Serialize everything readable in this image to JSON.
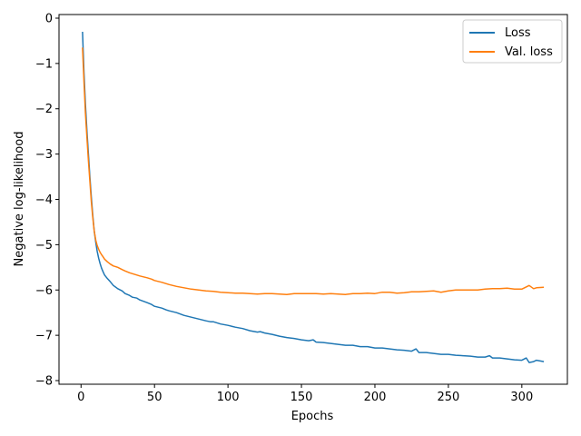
{
  "chart_data": {
    "type": "line",
    "title": "",
    "xlabel": "Epochs",
    "ylabel": "Negative log-likelihood",
    "xlim": [
      -15,
      331
    ],
    "ylim": [
      -8.08,
      0.08
    ],
    "xticks": [
      0,
      50,
      100,
      150,
      200,
      250,
      300
    ],
    "yticks": [
      0,
      -1,
      -2,
      -3,
      -4,
      -5,
      -6,
      -7,
      -8
    ],
    "tick_labels": {
      "x": [
        "0",
        "50",
        "100",
        "150",
        "200",
        "250",
        "300"
      ],
      "y": [
        "0",
        "−1",
        "−2",
        "−3",
        "−4",
        "−5",
        "−6",
        "−7",
        "−8"
      ]
    },
    "grid": false,
    "legend": {
      "position": "top-right",
      "entries": [
        "Loss",
        "Val. loss"
      ]
    },
    "series": [
      {
        "name": "Loss",
        "color": "#1f77b4",
        "x": [
          1,
          2,
          3,
          4,
          5,
          6,
          7,
          8,
          9,
          10,
          11,
          12,
          13,
          14,
          15,
          16,
          18,
          20,
          22,
          25,
          28,
          30,
          33,
          35,
          38,
          40,
          45,
          48,
          50,
          55,
          58,
          60,
          65,
          70,
          75,
          80,
          85,
          88,
          90,
          95,
          100,
          105,
          110,
          115,
          120,
          122,
          125,
          130,
          135,
          140,
          145,
          150,
          155,
          158,
          160,
          165,
          170,
          175,
          180,
          185,
          190,
          195,
          200,
          205,
          210,
          215,
          220,
          225,
          228,
          230,
          235,
          240,
          245,
          250,
          255,
          260,
          265,
          270,
          275,
          278,
          280,
          285,
          290,
          295,
          300,
          303,
          305,
          308,
          310,
          315
        ],
        "y": [
          -0.3,
          -1.2,
          -1.9,
          -2.5,
          -3.0,
          -3.5,
          -3.95,
          -4.35,
          -4.7,
          -4.95,
          -5.15,
          -5.3,
          -5.42,
          -5.52,
          -5.6,
          -5.67,
          -5.75,
          -5.82,
          -5.9,
          -5.97,
          -6.02,
          -6.08,
          -6.12,
          -6.16,
          -6.18,
          -6.22,
          -6.28,
          -6.32,
          -6.36,
          -6.4,
          -6.44,
          -6.46,
          -6.5,
          -6.56,
          -6.6,
          -6.64,
          -6.68,
          -6.7,
          -6.7,
          -6.75,
          -6.78,
          -6.82,
          -6.85,
          -6.9,
          -6.93,
          -6.92,
          -6.95,
          -6.98,
          -7.02,
          -7.05,
          -7.07,
          -7.1,
          -7.12,
          -7.1,
          -7.15,
          -7.16,
          -7.18,
          -7.2,
          -7.22,
          -7.22,
          -7.25,
          -7.25,
          -7.28,
          -7.28,
          -7.3,
          -7.32,
          -7.33,
          -7.35,
          -7.3,
          -7.38,
          -7.38,
          -7.4,
          -7.42,
          -7.42,
          -7.44,
          -7.45,
          -7.46,
          -7.48,
          -7.48,
          -7.45,
          -7.5,
          -7.5,
          -7.52,
          -7.54,
          -7.55,
          -7.5,
          -7.6,
          -7.58,
          -7.55,
          -7.58
        ]
      },
      {
        "name": "Val. loss",
        "color": "#ff7f0e",
        "x": [
          1,
          2,
          3,
          4,
          5,
          6,
          7,
          8,
          9,
          10,
          11,
          12,
          13,
          14,
          15,
          16,
          18,
          20,
          22,
          25,
          28,
          30,
          33,
          35,
          38,
          40,
          45,
          48,
          50,
          55,
          60,
          65,
          70,
          75,
          80,
          85,
          90,
          95,
          100,
          105,
          110,
          115,
          120,
          125,
          130,
          135,
          140,
          145,
          150,
          155,
          160,
          165,
          170,
          175,
          180,
          185,
          190,
          195,
          200,
          205,
          210,
          215,
          220,
          225,
          230,
          235,
          240,
          245,
          250,
          255,
          260,
          265,
          270,
          275,
          280,
          285,
          290,
          295,
          300,
          305,
          308,
          310,
          315
        ],
        "y": [
          -0.65,
          -1.4,
          -2.1,
          -2.65,
          -3.15,
          -3.6,
          -4.05,
          -4.4,
          -4.7,
          -4.9,
          -5.02,
          -5.1,
          -5.17,
          -5.22,
          -5.27,
          -5.32,
          -5.38,
          -5.43,
          -5.47,
          -5.5,
          -5.55,
          -5.58,
          -5.62,
          -5.64,
          -5.67,
          -5.69,
          -5.73,
          -5.76,
          -5.79,
          -5.83,
          -5.88,
          -5.92,
          -5.95,
          -5.98,
          -6.0,
          -6.02,
          -6.03,
          -6.05,
          -6.06,
          -6.07,
          -6.07,
          -6.08,
          -6.09,
          -6.08,
          -6.08,
          -6.09,
          -6.1,
          -6.08,
          -6.08,
          -6.08,
          -6.08,
          -6.09,
          -6.08,
          -6.09,
          -6.1,
          -6.08,
          -6.08,
          -6.07,
          -6.08,
          -6.05,
          -6.05,
          -6.07,
          -6.06,
          -6.04,
          -6.04,
          -6.03,
          -6.02,
          -6.05,
          -6.02,
          -6.0,
          -6.0,
          -6.0,
          -6.0,
          -5.98,
          -5.97,
          -5.97,
          -5.96,
          -5.98,
          -5.98,
          -5.9,
          -5.97,
          -5.95,
          -5.94
        ]
      }
    ]
  }
}
